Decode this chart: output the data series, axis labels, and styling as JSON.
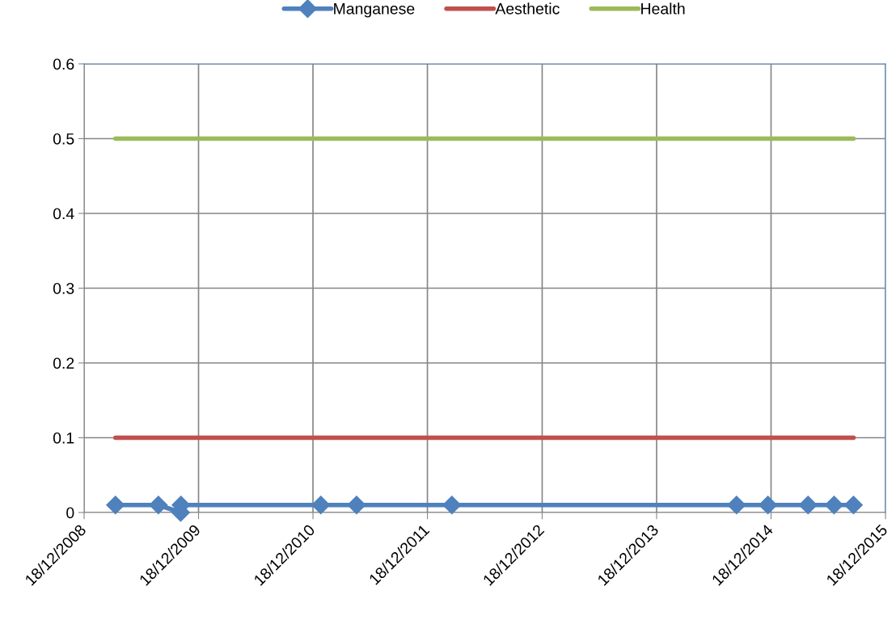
{
  "chart_data": {
    "type": "line",
    "series": [
      {
        "name": "Manganese",
        "color": "#4f81bd",
        "marker": "diamond",
        "x": [
          "2009-03-28",
          "2009-08-12",
          "2009-10-22",
          "2009-10-23",
          "2011-01-12",
          "2011-05-06",
          "2012-03-05",
          "2014-08-30",
          "2014-12-08",
          "2015-04-15",
          "2015-07-07",
          "2015-09-07"
        ],
        "values": [
          0.01,
          0.01,
          0,
          0.01,
          0.01,
          0.01,
          0.01,
          0.01,
          0.01,
          0.01,
          0.01,
          0.01
        ]
      },
      {
        "name": "Aesthetic",
        "color": "#c0504d",
        "marker": "none",
        "x": [
          "2009-03-28",
          "2015-09-07"
        ],
        "values": [
          0.1,
          0.1
        ]
      },
      {
        "name": "Health",
        "color": "#9bbb59",
        "marker": "none",
        "x": [
          "2009-03-28",
          "2015-09-07"
        ],
        "values": [
          0.5,
          0.5
        ]
      }
    ],
    "xlim": [
      "2008-12-18",
      "2015-12-18"
    ],
    "xticks": [
      {
        "value": "2008-12-18",
        "label": "18/12/2008"
      },
      {
        "value": "2009-12-18",
        "label": "18/12/2009"
      },
      {
        "value": "2010-12-18",
        "label": "18/12/2010"
      },
      {
        "value": "2011-12-18",
        "label": "18/12/2011"
      },
      {
        "value": "2012-12-18",
        "label": "18/12/2012"
      },
      {
        "value": "2013-12-18",
        "label": "18/12/2013"
      },
      {
        "value": "2014-12-18",
        "label": "18/12/2014"
      },
      {
        "value": "2015-12-18",
        "label": "18/12/2015"
      }
    ],
    "ylim": [
      0,
      0.6
    ],
    "yticks": [
      0,
      0.1,
      0.2,
      0.3,
      0.4,
      0.5,
      0.6
    ],
    "grid": true,
    "legend": "top",
    "line_style": "solid"
  }
}
